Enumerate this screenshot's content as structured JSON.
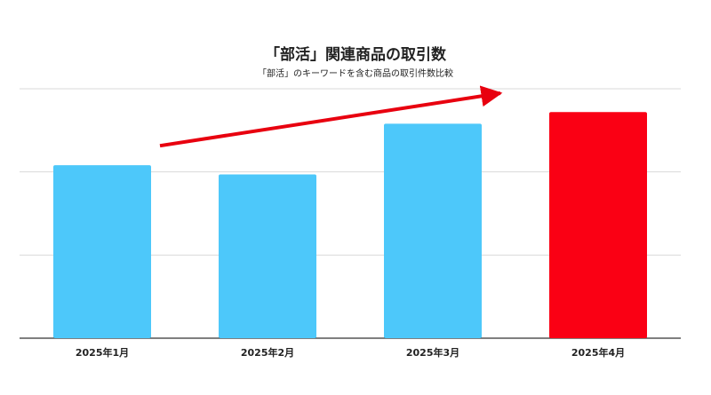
{
  "chart_data": {
    "type": "bar",
    "title": "「部活」関連商品の取引数",
    "subtitle": "「部活」のキーワードを含む商品の取引件数比較",
    "categories": [
      "2025年1月",
      "2025年2月",
      "2025年3月",
      "2025年4月"
    ],
    "values": [
      2.08,
      1.97,
      2.58,
      2.72
    ],
    "ylim": [
      0,
      3
    ],
    "grid": true,
    "bar_colors": [
      "#4DC8FA",
      "#4DC8FA",
      "#4DC8FA",
      "#FA0014"
    ],
    "annotation": {
      "type": "trend-arrow",
      "color": "#E8000F"
    }
  }
}
